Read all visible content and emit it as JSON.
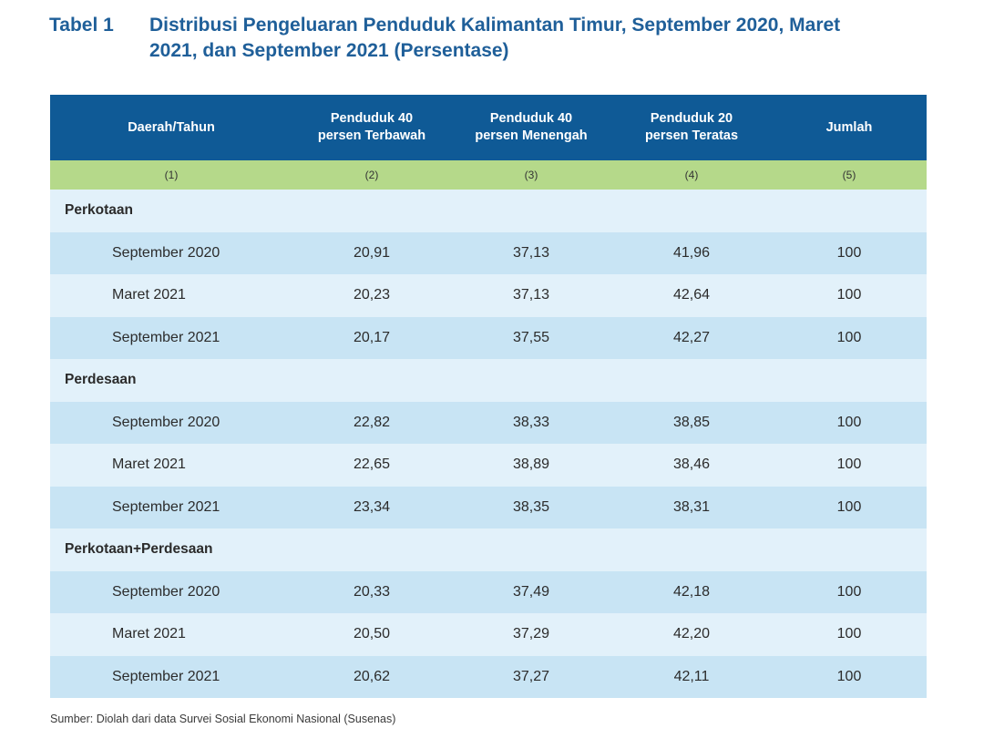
{
  "title": {
    "label": "Tabel 1",
    "text_line1": "Distribusi Pengeluaran Penduduk Kalimantan Timur,  September 2020, Maret",
    "text_line2": "2021, dan September 2021 (Persentase)"
  },
  "table": {
    "headers": [
      {
        "line1": "Daerah/Tahun",
        "line2": ""
      },
      {
        "line1": "Penduduk 40",
        "line2": "persen Terbawah"
      },
      {
        "line1": "Penduduk 40",
        "line2": "persen Menengah"
      },
      {
        "line1": "Penduduk 20",
        "line2": "persen Teratas"
      },
      {
        "line1": "Jumlah",
        "line2": ""
      }
    ],
    "column_numbers": [
      "(1)",
      "(2)",
      "(3)",
      "(4)",
      "(5)"
    ],
    "groups": [
      {
        "name": "Perkotaan",
        "rows": [
          {
            "period": "September 2020",
            "bottom40": "20,91",
            "middle40": "37,13",
            "top20": "41,96",
            "total": "100"
          },
          {
            "period": "Maret 2021",
            "bottom40": "20,23",
            "middle40": "37,13",
            "top20": "42,64",
            "total": "100"
          },
          {
            "period": "September 2021",
            "bottom40": "20,17",
            "middle40": "37,55",
            "top20": "42,27",
            "total": "100"
          }
        ]
      },
      {
        "name": "Perdesaan",
        "rows": [
          {
            "period": "September 2020",
            "bottom40": "22,82",
            "middle40": "38,33",
            "top20": "38,85",
            "total": "100"
          },
          {
            "period": "Maret 2021",
            "bottom40": "22,65",
            "middle40": "38,89",
            "top20": "38,46",
            "total": "100"
          },
          {
            "period": "September 2021",
            "bottom40": "23,34",
            "middle40": "38,35",
            "top20": "38,31",
            "total": "100"
          }
        ]
      },
      {
        "name": "Perkotaan+Perdesaan",
        "rows": [
          {
            "period": "September 2020",
            "bottom40": "20,33",
            "middle40": "37,49",
            "top20": "42,18",
            "total": "100"
          },
          {
            "period": "Maret 2021",
            "bottom40": "20,50",
            "middle40": "37,29",
            "top20": "42,20",
            "total": "100"
          },
          {
            "period": "September 2021",
            "bottom40": "20,62",
            "middle40": "37,27",
            "top20": "42,11",
            "total": "100"
          }
        ]
      }
    ]
  },
  "source": "Sumber: Diolah dari data Survei Sosial Ekonomi Nasional (Susenas)",
  "colors": {
    "title": "#1f5f99",
    "header_bg": "#0f5a96",
    "number_row_bg": "#b5d98a",
    "row_dark": "#c8e4f4",
    "row_light": "#e2f1fa"
  }
}
